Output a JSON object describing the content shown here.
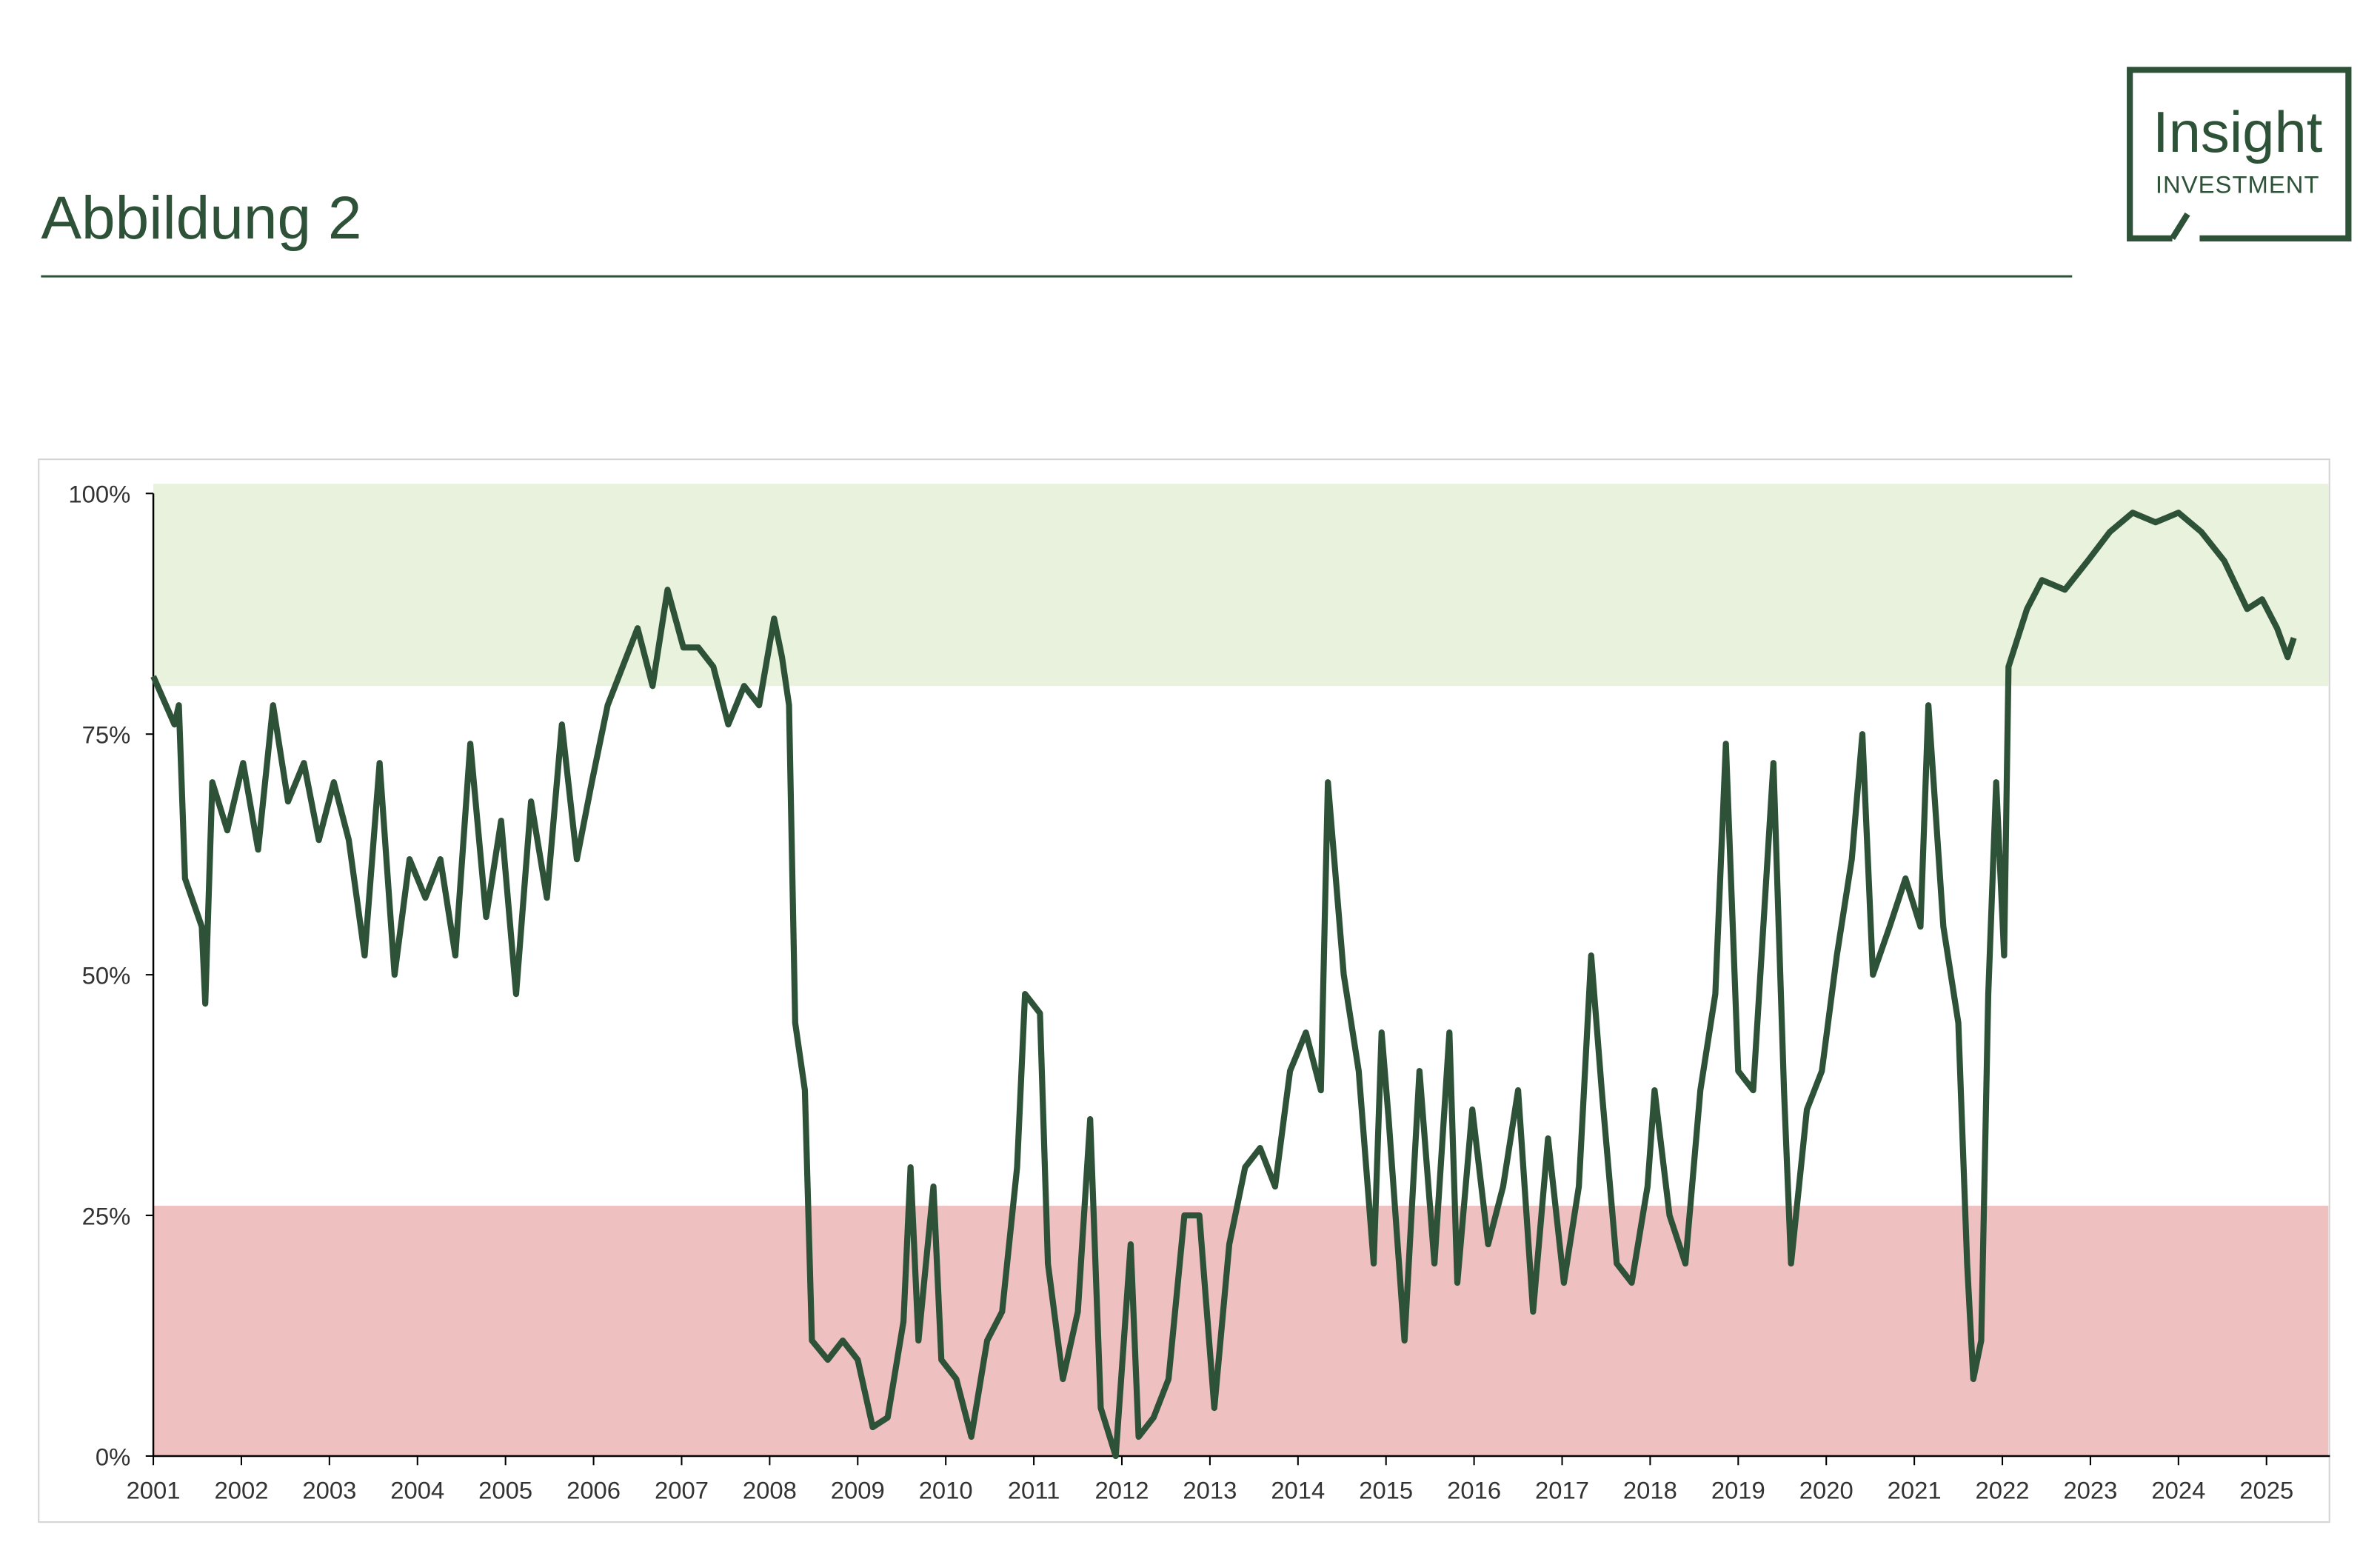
{
  "header": {
    "title": "Abbildung 2",
    "logo": {
      "name": "Insight",
      "sub": "INVESTMENT"
    }
  },
  "chart_data": {
    "type": "line",
    "x": [
      2001.0,
      2001.24,
      2001.29,
      2001.36,
      2001.55,
      2001.59,
      2001.67,
      2001.84,
      2002.02,
      2002.19,
      2002.36,
      2002.53,
      2002.71,
      2002.88,
      2003.05,
      2003.22,
      2003.4,
      2003.57,
      2003.74,
      2003.91,
      2004.09,
      2004.26,
      2004.43,
      2004.6,
      2004.78,
      2004.95,
      2005.12,
      2005.29,
      2005.47,
      2005.64,
      2005.81,
      2005.98,
      2006.16,
      2006.33,
      2006.5,
      2006.67,
      2006.84,
      2007.02,
      2007.19,
      2007.36,
      2007.53,
      2007.71,
      2007.88,
      2008.05,
      2008.14,
      2008.22,
      2008.29,
      2008.4,
      2008.48,
      2008.66,
      2008.83,
      2009.0,
      2009.17,
      2009.34,
      2009.52,
      2009.6,
      2009.69,
      2009.86,
      2009.95,
      2010.12,
      2010.29,
      2010.47,
      2010.64,
      2010.81,
      2010.9,
      2011.07,
      2011.16,
      2011.33,
      2011.5,
      2011.64,
      2011.76,
      2011.93,
      2012.1,
      2012.19,
      2012.36,
      2012.53,
      2012.71,
      2012.88,
      2013.05,
      2013.22,
      2013.4,
      2013.57,
      2013.74,
      2013.91,
      2014.09,
      2014.26,
      2014.34,
      2014.43,
      2014.52,
      2014.69,
      2014.86,
      2014.95,
      2015.03,
      2015.21,
      2015.38,
      2015.55,
      2015.72,
      2015.81,
      2015.98,
      2016.16,
      2016.33,
      2016.5,
      2016.67,
      2016.84,
      2017.02,
      2017.19,
      2017.33,
      2017.45,
      2017.62,
      2017.79,
      2017.97,
      2018.05,
      2018.22,
      2018.4,
      2018.57,
      2018.74,
      2018.86,
      2019.0,
      2019.17,
      2019.4,
      2019.52,
      2019.6,
      2019.78,
      2019.95,
      2020.12,
      2020.29,
      2020.41,
      2020.53,
      2020.72,
      2020.9,
      2021.07,
      2021.16,
      2021.33,
      2021.5,
      2021.6,
      2021.67,
      2021.76,
      2021.84,
      2021.93,
      2022.02,
      2022.07,
      2022.28,
      2022.45,
      2022.71,
      2022.97,
      2023.22,
      2023.48,
      2023.74,
      2024.0,
      2024.26,
      2024.52,
      2024.78,
      2024.95,
      2025.12,
      2025.24,
      2025.31
    ],
    "series": [
      {
        "color": "#2d5238",
        "values": [
          81,
          76,
          78,
          60,
          55,
          47,
          70,
          65,
          72,
          63,
          78,
          68,
          72,
          64,
          70,
          64,
          52,
          72,
          50,
          62,
          58,
          62,
          52,
          74,
          56,
          66,
          48,
          68,
          58,
          76,
          62,
          70,
          78,
          82,
          86,
          80,
          90,
          84,
          84,
          82,
          76,
          80,
          78,
          87,
          83,
          78,
          45,
          38,
          12,
          10,
          12,
          10,
          3,
          4,
          14,
          30,
          12,
          28,
          10,
          8,
          2,
          12,
          15,
          30,
          48,
          46,
          20,
          8,
          15,
          35,
          5,
          0,
          22,
          2,
          4,
          8,
          25,
          25,
          5,
          22,
          30,
          32,
          28,
          40,
          44,
          38,
          70,
          60,
          50,
          40,
          20,
          44,
          35,
          12,
          40,
          20,
          44,
          18,
          36,
          22,
          28,
          38,
          15,
          33,
          18,
          28,
          52,
          38,
          20,
          18,
          28,
          38,
          25,
          20,
          38,
          48,
          74,
          40,
          38,
          72,
          38,
          20,
          36,
          40,
          52,
          62,
          75,
          50,
          55,
          60,
          55,
          78,
          55,
          45,
          20,
          8,
          12,
          48,
          70,
          52,
          82,
          88,
          91,
          90,
          93,
          96,
          98,
          97,
          98,
          96,
          93,
          88,
          89,
          86,
          83,
          85
        ]
      }
    ],
    "xlim": [
      2001,
      2025.72
    ],
    "ylim": [
      0,
      100
    ],
    "xticks": [
      2001,
      2002,
      2003,
      2004,
      2005,
      2006,
      2007,
      2008,
      2009,
      2010,
      2011,
      2012,
      2013,
      2014,
      2015,
      2016,
      2017,
      2018,
      2019,
      2020,
      2021,
      2022,
      2023,
      2024,
      2025
    ],
    "yticks": [
      {
        "value": 0,
        "label": "0%"
      },
      {
        "value": 25,
        "label": "25%"
      },
      {
        "value": 50,
        "label": "50%"
      },
      {
        "value": 75,
        "label": "75%"
      },
      {
        "value": 100,
        "label": "100%"
      }
    ],
    "bands": [
      {
        "from": 80,
        "to": 101,
        "color": "#e9f2dc"
      },
      {
        "from": 0,
        "to": 26,
        "color": "#efc0c0"
      }
    ]
  }
}
